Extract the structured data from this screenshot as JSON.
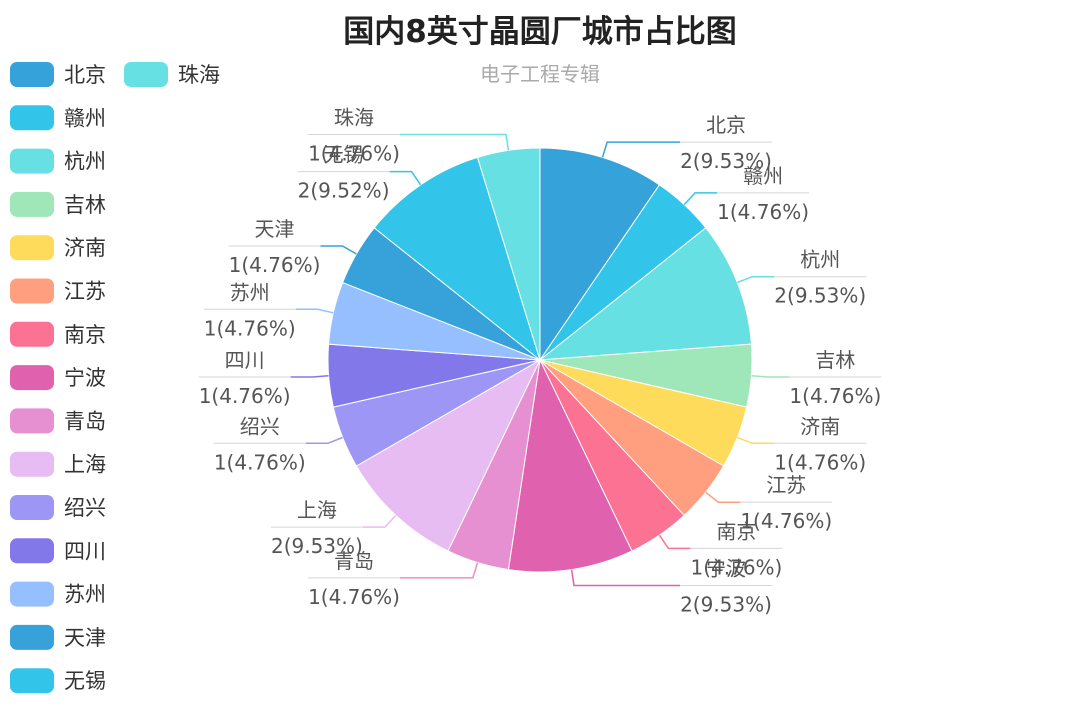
{
  "chart_data": {
    "type": "pie",
    "title": "国内8英寸晶圆厂城市占比图",
    "subtitle": "电子工程专辑",
    "legend_position": "left",
    "slices": [
      {
        "name": "北京",
        "value": 2,
        "label": "2(9.53%)",
        "color": "#36a2da"
      },
      {
        "name": "赣州",
        "value": 1,
        "label": "1(4.76%)",
        "color": "#32c5e9"
      },
      {
        "name": "杭州",
        "value": 2,
        "label": "2(9.53%)",
        "color": "#67e0e3"
      },
      {
        "name": "吉林",
        "value": 1,
        "label": "1(4.76%)",
        "color": "#9fe6b8"
      },
      {
        "name": "济南",
        "value": 1,
        "label": "1(4.76%)",
        "color": "#ffdb5c"
      },
      {
        "name": "江苏",
        "value": 1,
        "label": "1(4.76%)",
        "color": "#ff9f7f"
      },
      {
        "name": "南京",
        "value": 1,
        "label": "1(4.76%)",
        "color": "#fb7293"
      },
      {
        "name": "宁波",
        "value": 2,
        "label": "2(9.53%)",
        "color": "#e062ae"
      },
      {
        "name": "青岛",
        "value": 1,
        "label": "1(4.76%)",
        "color": "#e690d1"
      },
      {
        "name": "上海",
        "value": 2,
        "label": "2(9.53%)",
        "color": "#e7bcf3"
      },
      {
        "name": "绍兴",
        "value": 1,
        "label": "1(4.76%)",
        "color": "#9d96f5"
      },
      {
        "name": "四川",
        "value": 1,
        "label": "1(4.76%)",
        "color": "#8378ea"
      },
      {
        "name": "苏州",
        "value": 1,
        "label": "1(4.76%)",
        "color": "#96bfff"
      },
      {
        "name": "天津",
        "value": 1,
        "label": "1(4.76%)",
        "color": "#37a2da"
      },
      {
        "name": "无锡",
        "value": 2,
        "label": "2(9.52%)",
        "color": "#32c5e9"
      },
      {
        "name": "珠海",
        "value": 1,
        "label": "1(4.76%)",
        "color": "#67e0e3"
      }
    ]
  }
}
